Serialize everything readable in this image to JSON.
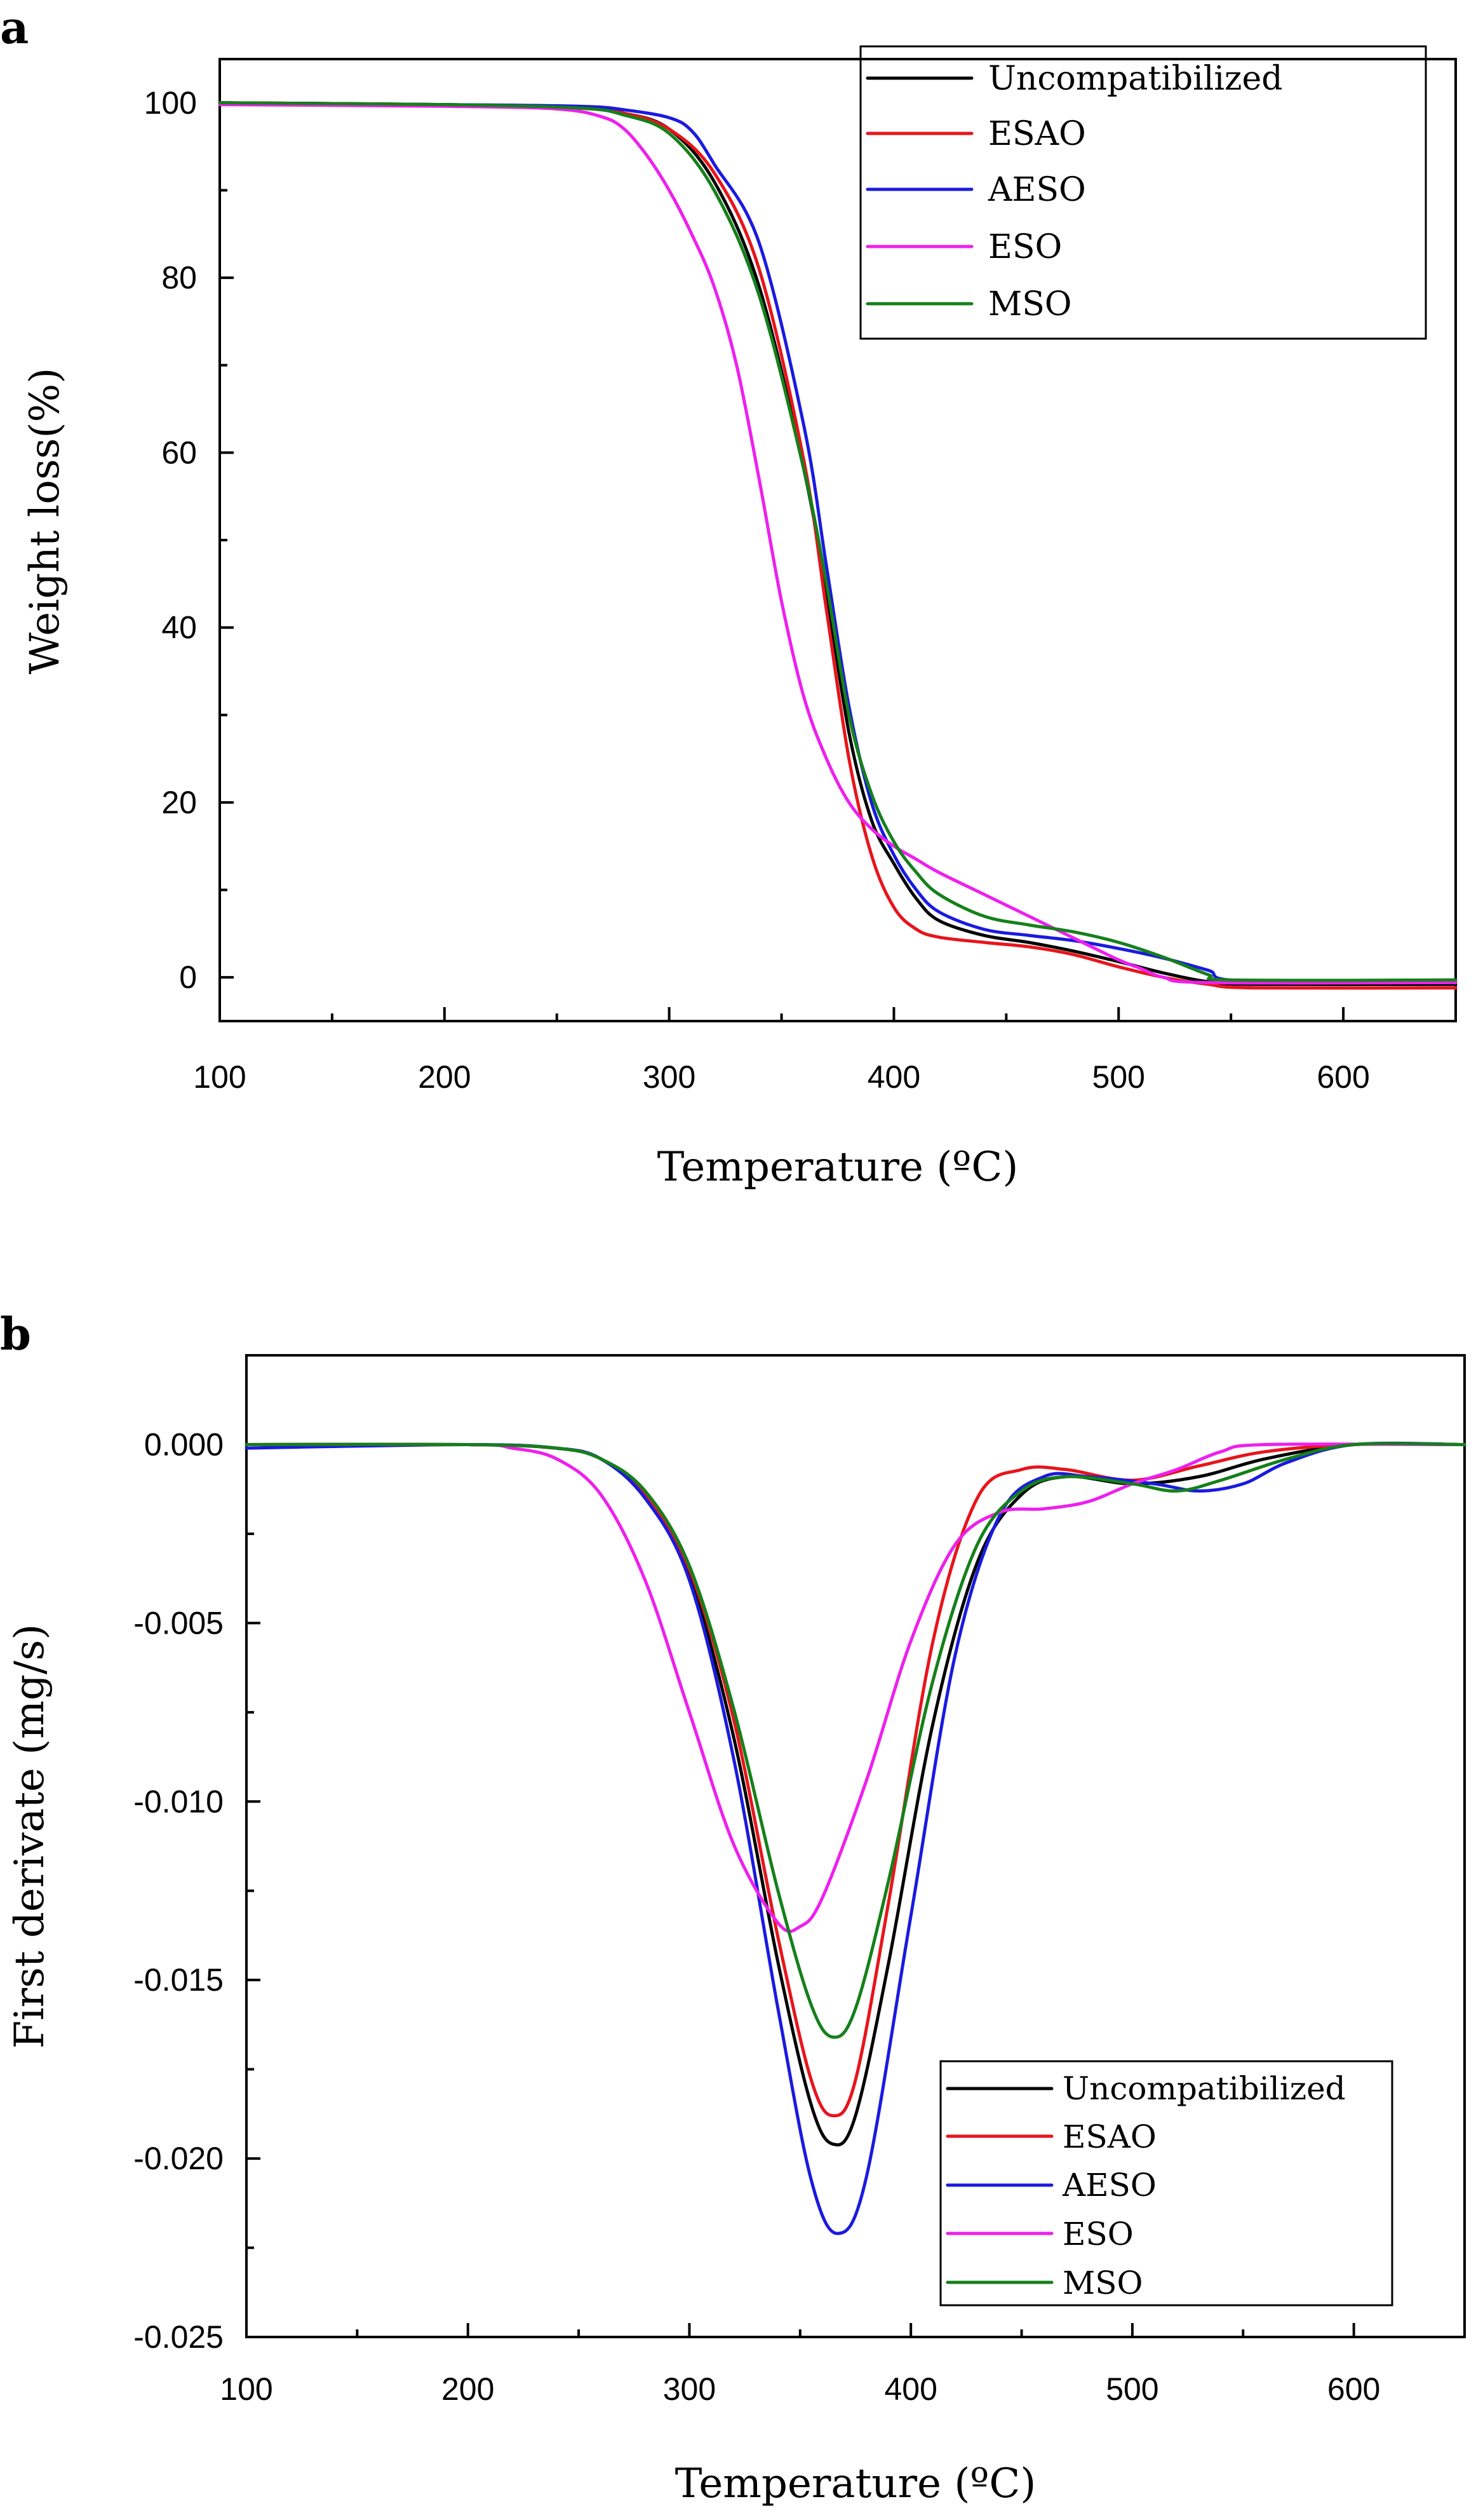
{
  "colors": {
    "Uncompatibilized": "#000000",
    "ESAO": "#e8141b",
    "AESO": "#1a1ae0",
    "ESO": "#ee1fee",
    "MSO": "#15801a"
  },
  "chart_data": [
    {
      "panel": "a",
      "type": "line",
      "title": "",
      "xlabel": "Temperature (ºC)",
      "ylabel": "Weight loss(%)",
      "xlim": [
        100,
        650
      ],
      "ylim": [
        -5,
        105
      ],
      "xticks": [
        100,
        200,
        300,
        400,
        500,
        600
      ],
      "xtick_labels": [
        "100",
        "200",
        "300",
        "400",
        "500",
        "600"
      ],
      "yticks": [
        0,
        20,
        40,
        60,
        80,
        100
      ],
      "ytick_labels": [
        "0",
        "20",
        "40",
        "60",
        "80",
        "100"
      ],
      "legend_position": "top-right",
      "series": [
        {
          "name": "Uncompatibilized",
          "points": [
            [
              100,
              100
            ],
            [
              200,
              99.8
            ],
            [
              260,
              99.4
            ],
            [
              280,
              98.8
            ],
            [
              300,
              97
            ],
            [
              320,
              91
            ],
            [
              340,
              79
            ],
            [
              360,
              58
            ],
            [
              370,
              44
            ],
            [
              380,
              28
            ],
            [
              390,
              18
            ],
            [
              400,
              13
            ],
            [
              410,
              9
            ],
            [
              420,
              6.5
            ],
            [
              440,
              4.8
            ],
            [
              460,
              4
            ],
            [
              480,
              3
            ],
            [
              500,
              1.8
            ],
            [
              520,
              0.5
            ],
            [
              540,
              -0.5
            ],
            [
              560,
              -0.8
            ],
            [
              650,
              -0.8
            ]
          ]
        },
        {
          "name": "ESAO",
          "points": [
            [
              100,
              100
            ],
            [
              200,
              99.8
            ],
            [
              260,
              99.4
            ],
            [
              280,
              98.8
            ],
            [
              300,
              97
            ],
            [
              320,
              92
            ],
            [
              340,
              81
            ],
            [
              360,
              59
            ],
            [
              370,
              42
            ],
            [
              380,
              25
            ],
            [
              390,
              14
            ],
            [
              400,
              8
            ],
            [
              410,
              5.5
            ],
            [
              420,
              4.6
            ],
            [
              440,
              4
            ],
            [
              460,
              3.5
            ],
            [
              480,
              2.6
            ],
            [
              500,
              1.2
            ],
            [
              520,
              0
            ],
            [
              540,
              -0.8
            ],
            [
              560,
              -1.2
            ],
            [
              650,
              -1.2
            ]
          ]
        },
        {
          "name": "AESO",
          "points": [
            [
              100,
              100
            ],
            [
              200,
              99.8
            ],
            [
              260,
              99.6
            ],
            [
              280,
              99.2
            ],
            [
              300,
              98.3
            ],
            [
              310,
              96.8
            ],
            [
              320,
              93
            ],
            [
              340,
              84
            ],
            [
              360,
              63
            ],
            [
              370,
              47
            ],
            [
              380,
              31
            ],
            [
              390,
              20
            ],
            [
              400,
              14
            ],
            [
              410,
              10
            ],
            [
              420,
              7.5
            ],
            [
              440,
              5.5
            ],
            [
              460,
              4.8
            ],
            [
              480,
              4.2
            ],
            [
              500,
              3.3
            ],
            [
              520,
              2.2
            ],
            [
              540,
              0.8
            ],
            [
              555,
              -0.4
            ],
            [
              650,
              -0.5
            ]
          ]
        },
        {
          "name": "ESO",
          "points": [
            [
              100,
              99.8
            ],
            [
              200,
              99.6
            ],
            [
              250,
              99.3
            ],
            [
              270,
              98.4
            ],
            [
              280,
              97
            ],
            [
              290,
              94
            ],
            [
              300,
              90
            ],
            [
              310,
              85
            ],
            [
              320,
              79
            ],
            [
              330,
              70
            ],
            [
              340,
              57
            ],
            [
              350,
              43
            ],
            [
              360,
              32
            ],
            [
              370,
              25
            ],
            [
              380,
              20
            ],
            [
              390,
              17
            ],
            [
              400,
              15
            ],
            [
              410,
              13.5
            ],
            [
              420,
              12
            ],
            [
              440,
              9.5
            ],
            [
              460,
              7
            ],
            [
              480,
              4.5
            ],
            [
              500,
              2
            ],
            [
              510,
              1
            ],
            [
              520,
              0
            ],
            [
              540,
              -0.6
            ],
            [
              650,
              -0.6
            ]
          ]
        },
        {
          "name": "MSO",
          "points": [
            [
              100,
              100
            ],
            [
              200,
              99.8
            ],
            [
              260,
              99.4
            ],
            [
              280,
              98.6
            ],
            [
              300,
              96.5
            ],
            [
              320,
              90
            ],
            [
              340,
              78
            ],
            [
              360,
              58
            ],
            [
              370,
              45
            ],
            [
              380,
              30
            ],
            [
              390,
              21
            ],
            [
              400,
              15.5
            ],
            [
              410,
              12
            ],
            [
              420,
              9.5
            ],
            [
              440,
              7
            ],
            [
              460,
              6
            ],
            [
              480,
              5.2
            ],
            [
              500,
              4
            ],
            [
              520,
              2.3
            ],
            [
              540,
              0.3
            ],
            [
              550,
              -0.3
            ],
            [
              650,
              -0.3
            ]
          ]
        }
      ]
    },
    {
      "panel": "b",
      "type": "line",
      "title": "",
      "xlabel": "Temperature (ºC)",
      "ylabel": "First derivate (mg/s)",
      "xlim": [
        100,
        650
      ],
      "ylim": [
        -0.025,
        0.0025
      ],
      "xticks": [
        100,
        200,
        300,
        400,
        500,
        600
      ],
      "xtick_labels": [
        "100",
        "200",
        "300",
        "400",
        "500",
        "600"
      ],
      "yticks": [
        0.0,
        -0.005,
        -0.01,
        -0.015,
        -0.02,
        -0.025
      ],
      "ytick_labels": [
        "0.000",
        "-0.005",
        "-0.010",
        "-0.015",
        "-0.020",
        "-0.025"
      ],
      "legend_position": "bottom-right",
      "series": [
        {
          "name": "Uncompatibilized",
          "points": [
            [
              100,
              0
            ],
            [
              200,
              0
            ],
            [
              240,
              -0.0001
            ],
            [
              260,
              -0.0004
            ],
            [
              280,
              -0.0015
            ],
            [
              300,
              -0.0037
            ],
            [
              320,
              -0.0082
            ],
            [
              340,
              -0.0145
            ],
            [
              355,
              -0.0185
            ],
            [
              365,
              -0.0196
            ],
            [
              375,
              -0.0188
            ],
            [
              390,
              -0.0145
            ],
            [
              410,
              -0.0078
            ],
            [
              430,
              -0.0033
            ],
            [
              450,
              -0.0014
            ],
            [
              470,
              -0.0009
            ],
            [
              500,
              -0.0011
            ],
            [
              530,
              -0.0009
            ],
            [
              560,
              -0.0004
            ],
            [
              600,
              0
            ],
            [
              650,
              0
            ]
          ]
        },
        {
          "name": "ESAO",
          "points": [
            [
              100,
              0
            ],
            [
              200,
              0
            ],
            [
              240,
              -0.0001
            ],
            [
              260,
              -0.0004
            ],
            [
              280,
              -0.0014
            ],
            [
              300,
              -0.0035
            ],
            [
              320,
              -0.0077
            ],
            [
              340,
              -0.0138
            ],
            [
              355,
              -0.0178
            ],
            [
              365,
              -0.0188
            ],
            [
              375,
              -0.0178
            ],
            [
              390,
              -0.0128
            ],
            [
              410,
              -0.0055
            ],
            [
              430,
              -0.0015
            ],
            [
              450,
              -0.0007
            ],
            [
              470,
              -0.0007
            ],
            [
              500,
              -0.001
            ],
            [
              530,
              -0.0006
            ],
            [
              560,
              -0.0002
            ],
            [
              600,
              0
            ],
            [
              650,
              0
            ]
          ]
        },
        {
          "name": "AESO",
          "points": [
            [
              100,
              -0.0001
            ],
            [
              200,
              0
            ],
            [
              240,
              -0.0001
            ],
            [
              260,
              -0.0004
            ],
            [
              280,
              -0.0015
            ],
            [
              300,
              -0.0038
            ],
            [
              320,
              -0.0088
            ],
            [
              340,
              -0.0158
            ],
            [
              355,
              -0.0206
            ],
            [
              367,
              -0.0221
            ],
            [
              380,
              -0.0205
            ],
            [
              400,
              -0.0132
            ],
            [
              420,
              -0.0059
            ],
            [
              440,
              -0.002
            ],
            [
              460,
              -0.0009
            ],
            [
              480,
              -0.0009
            ],
            [
              510,
              -0.0011
            ],
            [
              530,
              -0.0013
            ],
            [
              550,
              -0.0011
            ],
            [
              570,
              -0.0005
            ],
            [
              600,
              0
            ],
            [
              650,
              0
            ]
          ]
        },
        {
          "name": "ESO",
          "points": [
            [
              100,
              0
            ],
            [
              200,
              0
            ],
            [
              220,
              -0.0001
            ],
            [
              240,
              -0.0004
            ],
            [
              260,
              -0.0014
            ],
            [
              280,
              -0.0038
            ],
            [
              300,
              -0.0075
            ],
            [
              320,
              -0.0112
            ],
            [
              340,
              -0.0134
            ],
            [
              350,
              -0.0135
            ],
            [
              360,
              -0.0127
            ],
            [
              380,
              -0.0094
            ],
            [
              400,
              -0.0055
            ],
            [
              420,
              -0.0028
            ],
            [
              440,
              -0.0019
            ],
            [
              460,
              -0.0018
            ],
            [
              480,
              -0.0016
            ],
            [
              500,
              -0.0011
            ],
            [
              520,
              -0.0007
            ],
            [
              540,
              -0.0002
            ],
            [
              560,
              0
            ],
            [
              650,
              0
            ]
          ]
        },
        {
          "name": "MSO",
          "points": [
            [
              100,
              0
            ],
            [
              200,
              0
            ],
            [
              240,
              -0.0001
            ],
            [
              260,
              -0.0004
            ],
            [
              280,
              -0.0013
            ],
            [
              300,
              -0.0034
            ],
            [
              320,
              -0.0074
            ],
            [
              340,
              -0.0125
            ],
            [
              355,
              -0.0157
            ],
            [
              365,
              -0.0166
            ],
            [
              375,
              -0.0158
            ],
            [
              390,
              -0.0122
            ],
            [
              410,
              -0.0066
            ],
            [
              430,
              -0.0028
            ],
            [
              450,
              -0.0013
            ],
            [
              470,
              -0.0009
            ],
            [
              500,
              -0.0011
            ],
            [
              520,
              -0.0013
            ],
            [
              540,
              -0.001
            ],
            [
              570,
              -0.0004
            ],
            [
              600,
              0
            ],
            [
              650,
              0
            ]
          ]
        }
      ]
    }
  ]
}
